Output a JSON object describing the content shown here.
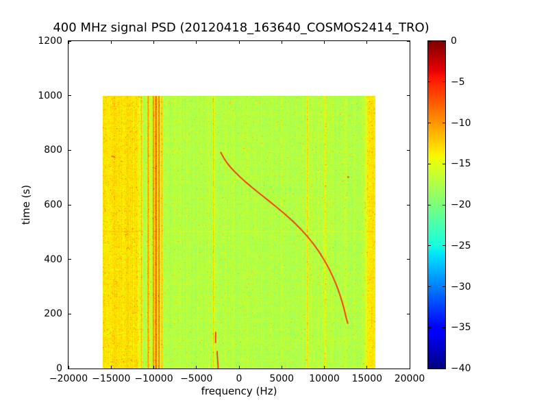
{
  "chart_data": {
    "type": "heatmap",
    "title": "400 MHz signal PSD (20120418_163640_COSMOS2414_TRO)",
    "xlabel": "frequency (Hz)",
    "ylabel": "time (s)",
    "xlim": [
      -20000,
      20000
    ],
    "ylim": [
      0,
      1200
    ],
    "xticks": [
      -20000,
      -15000,
      -10000,
      -5000,
      0,
      5000,
      10000,
      15000,
      20000
    ],
    "yticks": [
      0,
      200,
      400,
      600,
      800,
      1000,
      1200
    ],
    "extent": {
      "x": [
        -16000,
        16000
      ],
      "y": [
        0,
        1000
      ]
    },
    "colorbar": {
      "colormap": "jet",
      "range": [
        -40,
        0
      ],
      "ticks": [
        0,
        -5,
        -10,
        -15,
        -20,
        -25,
        -30,
        -35,
        -40
      ]
    },
    "background_level_db": -17.2,
    "noise_db": 2.6,
    "speckle": {
      "probability": 0.02,
      "min_boost_db": 2.5,
      "max_boost_db": 6.5
    },
    "edge_bands": [
      {
        "x": [
          -16000,
          -11900
        ],
        "level_db": -13.2,
        "fade_hz": 450
      },
      {
        "x": [
          15100,
          16000
        ],
        "level_db": -13.2,
        "fade_hz": 450
      }
    ],
    "horizontal_lines": [
      {
        "time_s": 503,
        "delta_db": 1.2,
        "halfwidth_s": 3
      }
    ],
    "vertical_stripes": [
      {
        "freq_hz": -13050,
        "level_db": -12.5,
        "width_hz": 160
      },
      {
        "freq_hz": -11450,
        "level_db": -11.5,
        "width_hz": 130
      },
      {
        "freq_hz": -10650,
        "level_db": -10.0,
        "width_hz": 200
      },
      {
        "freq_hz": -10060,
        "level_db": -8.5,
        "width_hz": 130
      },
      {
        "freq_hz": -9750,
        "level_db": -6.2,
        "width_hz": 170
      },
      {
        "freq_hz": -9400,
        "level_db": -7.0,
        "width_hz": 130
      },
      {
        "freq_hz": -9060,
        "level_db": -10.5,
        "width_hz": 130
      },
      {
        "freq_hz": -3020,
        "level_db": -12.5,
        "width_hz": 110
      },
      {
        "freq_hz": 8020,
        "level_db": -11.8,
        "width_hz": 130
      },
      {
        "freq_hz": 10150,
        "level_db": -12.8,
        "width_hz": 110
      }
    ],
    "doppler_track": {
      "level_db": -5,
      "points_hz_s": [
        [
          -2150,
          793
        ],
        [
          -1980,
          783
        ],
        [
          -1750,
          770
        ],
        [
          -1430,
          755
        ],
        [
          -1020,
          739
        ],
        [
          -520,
          722
        ],
        [
          80,
          704
        ],
        [
          780,
          684
        ],
        [
          1570,
          663
        ],
        [
          2440,
          641
        ],
        [
          3370,
          618
        ],
        [
          4330,
          594
        ],
        [
          5290,
          569
        ],
        [
          6220,
          543
        ],
        [
          7100,
          516
        ],
        [
          7920,
          488
        ],
        [
          8680,
          459
        ],
        [
          9370,
          429
        ],
        [
          9990,
          398
        ],
        [
          10540,
          367
        ],
        [
          11020,
          336
        ],
        [
          11440,
          305
        ],
        [
          11800,
          274
        ],
        [
          12110,
          243
        ],
        [
          12370,
          213
        ],
        [
          12590,
          184
        ],
        [
          12760,
          166
        ]
      ]
    },
    "extra_marks": [
      {
        "type": "segment",
        "level_db": -5,
        "points": [
          [
            -2745,
            133
          ],
          [
            -2760,
            95
          ]
        ]
      },
      {
        "type": "segment",
        "level_db": -5,
        "points": [
          [
            -2580,
            63
          ],
          [
            -2520,
            34
          ],
          [
            -2470,
            12
          ],
          [
            -2455,
            0
          ]
        ]
      },
      {
        "type": "dash",
        "level_db": -6.5,
        "points": [
          [
            -14950,
            779
          ],
          [
            -14580,
            776
          ]
        ]
      },
      {
        "type": "dot",
        "level_db": -7,
        "points": [
          [
            12790,
            703
          ]
        ]
      }
    ]
  }
}
